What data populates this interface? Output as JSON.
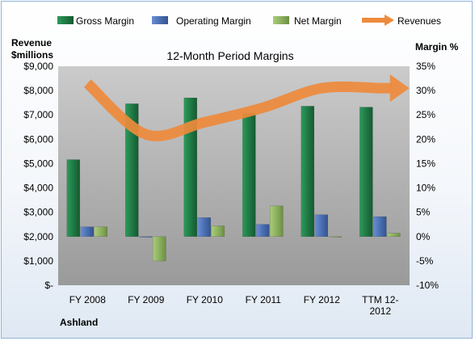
{
  "chart_data": {
    "type": "bar",
    "title": "12-Month Period Margins",
    "company": "Ashland",
    "left_axis_label_line1": "Revenue",
    "left_axis_label_line2": "$millions",
    "right_axis_label": "Margin %",
    "categories": [
      "FY 2008",
      "FY 2009",
      "FY 2010",
      "FY 2011",
      "FY 2012",
      "TTM 12-2012"
    ],
    "category_label_lines": [
      [
        "FY 2008"
      ],
      [
        "FY 2009"
      ],
      [
        "FY 2010"
      ],
      [
        "FY 2011"
      ],
      [
        "FY 2012"
      ],
      [
        "TTM 12-",
        "2012"
      ]
    ],
    "left_ylim": [
      0,
      9000
    ],
    "left_ticks": [
      0,
      1000,
      2000,
      3000,
      4000,
      5000,
      6000,
      7000,
      8000,
      9000
    ],
    "left_tick_labels": [
      "$-",
      "$1,000",
      "$2,000",
      "$3,000",
      "$4,000",
      "$5,000",
      "$6,000",
      "$7,000",
      "$8,000",
      "$9,000"
    ],
    "right_ylim": [
      -10,
      35
    ],
    "right_ticks": [
      -10,
      -5,
      0,
      5,
      10,
      15,
      20,
      25,
      30,
      35
    ],
    "right_tick_labels": [
      "-10%",
      "-5%",
      "0%",
      "5%",
      "10%",
      "15%",
      "20%",
      "25%",
      "30%",
      "35%"
    ],
    "margin_series": [
      {
        "name": "Gross Margin",
        "color": "#1f7a45",
        "values": [
          15.8,
          27.3,
          28.5,
          25.3,
          26.8,
          26.6
        ]
      },
      {
        "name": "Operating Margin",
        "color": "#4a6fb3",
        "values": [
          2.0,
          0.0,
          3.9,
          2.5,
          4.5,
          4.1
        ]
      },
      {
        "name": "Net Margin",
        "color": "#8db060",
        "values": [
          2.0,
          -5.0,
          2.2,
          6.3,
          0.0,
          0.7
        ]
      }
    ],
    "line_series": {
      "name": "Revenues",
      "color": "#ee8a3c",
      "values": [
        8300,
        6200,
        6700,
        7300,
        8100,
        8100
      ]
    },
    "legend_position": "top",
    "grid": false
  }
}
